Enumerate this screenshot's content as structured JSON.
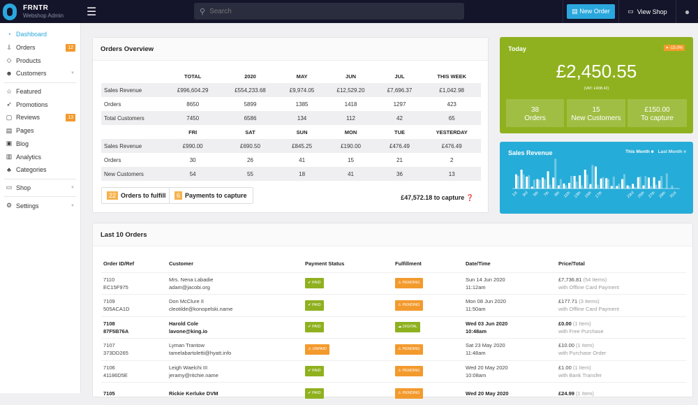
{
  "header": {
    "brand": "FRNTR",
    "subtitle": "Webshop Admin",
    "search_placeholder": "Search",
    "new_order": "New Order",
    "view_shop": "View Shop"
  },
  "sidebar": {
    "items": [
      {
        "label": "Dashboard",
        "icon": "dashboard-icon",
        "active": true
      },
      {
        "label": "Orders",
        "icon": "inbox-icon",
        "badge": "12"
      },
      {
        "label": "Products",
        "icon": "tags-icon"
      },
      {
        "label": "Customers",
        "icon": "users-icon",
        "chevron": true
      },
      {
        "label": "Featured",
        "icon": "star-icon"
      },
      {
        "label": "Promotions",
        "icon": "rocket-icon"
      },
      {
        "label": "Reviews",
        "icon": "comment-icon",
        "badge": "13"
      },
      {
        "label": "Pages",
        "icon": "page-icon"
      },
      {
        "label": "Blog",
        "icon": "blog-icon"
      },
      {
        "label": "Analytics",
        "icon": "chart-icon"
      },
      {
        "label": "Categories",
        "icon": "sitemap-icon"
      },
      {
        "label": "Shop",
        "icon": "store-icon",
        "chevron": true
      },
      {
        "label": "Settings",
        "icon": "gears-icon",
        "chevron": true
      }
    ]
  },
  "overview": {
    "title": "Orders Overview",
    "head1": [
      "",
      "TOTAL",
      "2020",
      "MAY",
      "JUN",
      "JUL",
      "THIS WEEK"
    ],
    "rows1": [
      [
        "Sales Revenue",
        "£996,604.29",
        "£554,233.68",
        "£9,974.05",
        "£12,529.20",
        "£7,696.37",
        "£1,042.98"
      ],
      [
        "Orders",
        "8650",
        "5899",
        "1385",
        "1418",
        "1297",
        "423"
      ],
      [
        "Total Customers",
        "7450",
        "6586",
        "134",
        "112",
        "42",
        "65"
      ]
    ],
    "head2": [
      "",
      "FRI",
      "SAT",
      "SUN",
      "MON",
      "TUE",
      "YESTERDAY"
    ],
    "rows2": [
      [
        "Sales Revenue",
        "£990.00",
        "£690.50",
        "£845.25",
        "£190.00",
        "£476.49",
        "£476.49"
      ],
      [
        "Orders",
        "30",
        "26",
        "41",
        "15",
        "21",
        "2"
      ],
      [
        "New Customers",
        "54",
        "55",
        "18",
        "41",
        "36",
        "13"
      ]
    ],
    "fulfill_count": "22",
    "fulfill_label": "Orders to fulfill",
    "capture_count": "6",
    "capture_label": "Payments to capture",
    "to_capture": "£47,572.18 to capture"
  },
  "today": {
    "title": "Today",
    "change": "▾ -15.0%",
    "amount": "£2,450.55",
    "vat": "(VAT: £408.42)",
    "boxes": [
      {
        "value": "38",
        "label": "Orders"
      },
      {
        "value": "15",
        "label": "New Customers"
      },
      {
        "value": "£150.00",
        "label": "To capture"
      }
    ]
  },
  "colors": {
    "accent": "#2aa7dc",
    "green": "#8fb11f",
    "orange": "#f39a2d",
    "paid": "#8fb11f"
  },
  "chart_data": {
    "type": "bar",
    "title": "Sales Revenue",
    "series": [
      {
        "name": "This Month",
        "values": [
          45,
          60,
          38,
          6,
          30,
          35,
          55,
          35,
          10,
          16,
          18,
          40,
          42,
          60,
          14,
          70,
          32,
          33,
          8,
          8,
          30,
          10,
          15,
          36,
          10,
          35,
          36,
          25,
          0,
          0,
          0
        ]
      },
      {
        "name": "Last Month",
        "values": [
          40,
          45,
          42,
          28,
          28,
          30,
          12,
          95,
          30,
          10,
          40,
          22,
          10,
          44,
          75,
          12,
          36,
          30,
          38,
          15,
          46,
          8,
          5,
          38,
          40,
          8,
          12,
          40,
          48,
          10,
          0
        ]
      }
    ],
    "x_tick_labels": [
      "1st",
      "3rd",
      "5th",
      "7th",
      "9th",
      "11th",
      "13th",
      "15th",
      "17th",
      "23rd",
      "25th",
      "27th",
      "29th",
      "31st"
    ]
  },
  "orders": {
    "title": "Last 10 Orders",
    "columns": [
      "Order ID/Ref",
      "Customer",
      "Payment Status",
      "Fulfillment",
      "Date/Time",
      "Price/Total"
    ],
    "rows": [
      {
        "id": "7110",
        "ref": "EC15F975",
        "name": "Mrs. Nena Labadie",
        "email": "adam@jacobi.org",
        "payment": "✔ PAID",
        "fulfill": "⚠ PENDING",
        "date": "Sun 14 Jun 2020",
        "time": "11:12am",
        "price": "£7,736.81",
        "items": "(54 Items)",
        "method": "with Offline Card Payment"
      },
      {
        "id": "7109",
        "ref": "505ACA1D",
        "name": "Don McClure II",
        "email": "cleotilde@konopelski.name",
        "payment": "✔ PAID",
        "fulfill": "⚠ PENDING",
        "date": "Mon 08 Jun 2020",
        "time": "11:50am",
        "price": "£177.71",
        "items": "(3 Items)",
        "method": "with Offline Card Payment"
      },
      {
        "id": "7108",
        "ref": "87F5B76A",
        "name": "Harold Cole",
        "email": "lavone@king.io",
        "payment": "✔ PAID",
        "fulfill": "☁ DIGITAL",
        "date": "Wed 03 Jun 2020",
        "time": "10:48am",
        "price": "£0.00",
        "items": "(1 Item)",
        "method": "with Free Purchase",
        "bold": true
      },
      {
        "id": "7107",
        "ref": "373DD265",
        "name": "Lyman Trantow",
        "email": "tamelabartoletti@hyatt.info",
        "payment": "⚠ UNPAID",
        "fulfill": "⚠ PENDING",
        "date": "Sat 23 May 2020",
        "time": "11:48am",
        "price": "£10.00",
        "items": "(1 Item)",
        "method": "with Purchase Order"
      },
      {
        "id": "7106",
        "ref": "41186D5E",
        "name": "Leigh Waelchi III",
        "email": "jeramy@ritchie.name",
        "payment": "✔ PAID",
        "fulfill": "⚠ PENDING",
        "date": "Wed 20 May 2020",
        "time": "10:08am",
        "price": "£1.00",
        "items": "(1 Item)",
        "method": "with Bank Transfer"
      },
      {
        "id": "7105",
        "ref": "",
        "name": "Rickie Kerluke DVM",
        "email": "",
        "payment": "✔ PAID",
        "fulfill": "⚠ PENDING",
        "date": "Wed 20 May 2020",
        "time": "",
        "price": "£24.99",
        "items": "(1 Item)",
        "method": "",
        "bold": true
      }
    ]
  }
}
